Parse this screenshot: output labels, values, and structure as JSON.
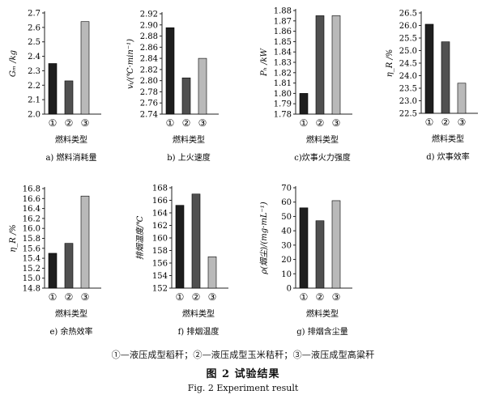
{
  "figure": {
    "legend_text": "①—液压成型稻秆；②—液压成型玉米秸秆；③—液压成型高粱秆",
    "title": "图 2  试验结果",
    "title_en": "Fig. 2    Experiment result",
    "colors": {
      "bar1": "#1e1e1e",
      "bar2": "#505050",
      "bar3": "#b9b9b9"
    }
  },
  "chart_data": [
    {
      "id": "a",
      "type": "bar",
      "caption": "a) 燃料消耗量",
      "xlabel": "燃料类型",
      "ylabel": "Gₘ /kg",
      "categories": [
        "①",
        "②",
        "③"
      ],
      "values": [
        2.35,
        2.23,
        2.64
      ],
      "ylim": [
        2.0,
        2.7
      ],
      "yticks": [
        "2.0",
        "2.1",
        "2.2",
        "2.3",
        "2.4",
        "2.5",
        "2.6",
        "2.7"
      ],
      "grid": false
    },
    {
      "id": "b",
      "type": "bar",
      "caption": "b) 上火速度",
      "xlabel": "燃料类型",
      "ylabel": "vₜ/(℃·min⁻¹)",
      "categories": [
        "①",
        "②",
        "③"
      ],
      "values": [
        2.895,
        2.805,
        2.84
      ],
      "ylim": [
        2.74,
        2.92
      ],
      "yticks": [
        "2.74",
        "2.76",
        "2.78",
        "2.80",
        "2.82",
        "2.84",
        "2.86",
        "2.88",
        "2.90",
        "2.92"
      ],
      "grid": false
    },
    {
      "id": "c",
      "type": "bar",
      "caption": "c)炊事火力强度",
      "xlabel": "燃料类型",
      "ylabel": "Pₕ /kW",
      "categories": [
        "①",
        "②",
        "③"
      ],
      "values": [
        1.8,
        1.875,
        1.875
      ],
      "ylim": [
        1.78,
        1.88
      ],
      "yticks": [
        "1.78",
        "1.79",
        "1.80",
        "1.81",
        "1.82",
        "1.83",
        "1.84",
        "1.85",
        "1.86",
        "1.87",
        "1.88"
      ],
      "grid": false
    },
    {
      "id": "d",
      "type": "bar",
      "caption": "d) 炊事效率",
      "xlabel": "燃料类型",
      "ylabel": "η_R /%",
      "categories": [
        "①",
        "②",
        "③"
      ],
      "values": [
        26.05,
        25.35,
        23.7
      ],
      "ylim": [
        22.5,
        26.5
      ],
      "yticks": [
        "22.5",
        "23.0",
        "23.5",
        "24.0",
        "24.5",
        "25.0",
        "25.5",
        "26.0",
        "26.5"
      ],
      "grid": false
    },
    {
      "id": "e",
      "type": "bar",
      "caption": "e) 余热效率",
      "xlabel": "燃料类型",
      "ylabel": "η_R /%",
      "categories": [
        "①",
        "②",
        "③"
      ],
      "values": [
        15.5,
        15.7,
        16.65
      ],
      "ylim": [
        14.8,
        16.8
      ],
      "yticks": [
        "14.8",
        "15.0",
        "15.2",
        "15.4",
        "15.6",
        "15.8",
        "16.0",
        "16.2",
        "16.4",
        "16.6",
        "16.8"
      ],
      "grid": false
    },
    {
      "id": "f",
      "type": "bar",
      "caption": "f) 排烟温度",
      "xlabel": "燃料类型",
      "ylabel": "排烟温度/℃",
      "categories": [
        "①",
        "②",
        "③"
      ],
      "values": [
        165.2,
        167.0,
        157.0
      ],
      "ylim": [
        152,
        168
      ],
      "yticks": [
        "152",
        "154",
        "156",
        "158",
        "160",
        "162",
        "164",
        "166",
        "168"
      ],
      "grid": false
    },
    {
      "id": "g",
      "type": "bar",
      "caption": "g) 排烟含尘量",
      "xlabel": "燃料类型",
      "ylabel": "ρ(烟尘)/(mg·mL⁻¹)",
      "categories": [
        "①",
        "②",
        "③"
      ],
      "values": [
        56,
        47,
        61
      ],
      "ylim": [
        0,
        70
      ],
      "yticks": [
        "0",
        "10",
        "20",
        "30",
        "40",
        "50",
        "60",
        "70"
      ],
      "grid": false
    }
  ]
}
